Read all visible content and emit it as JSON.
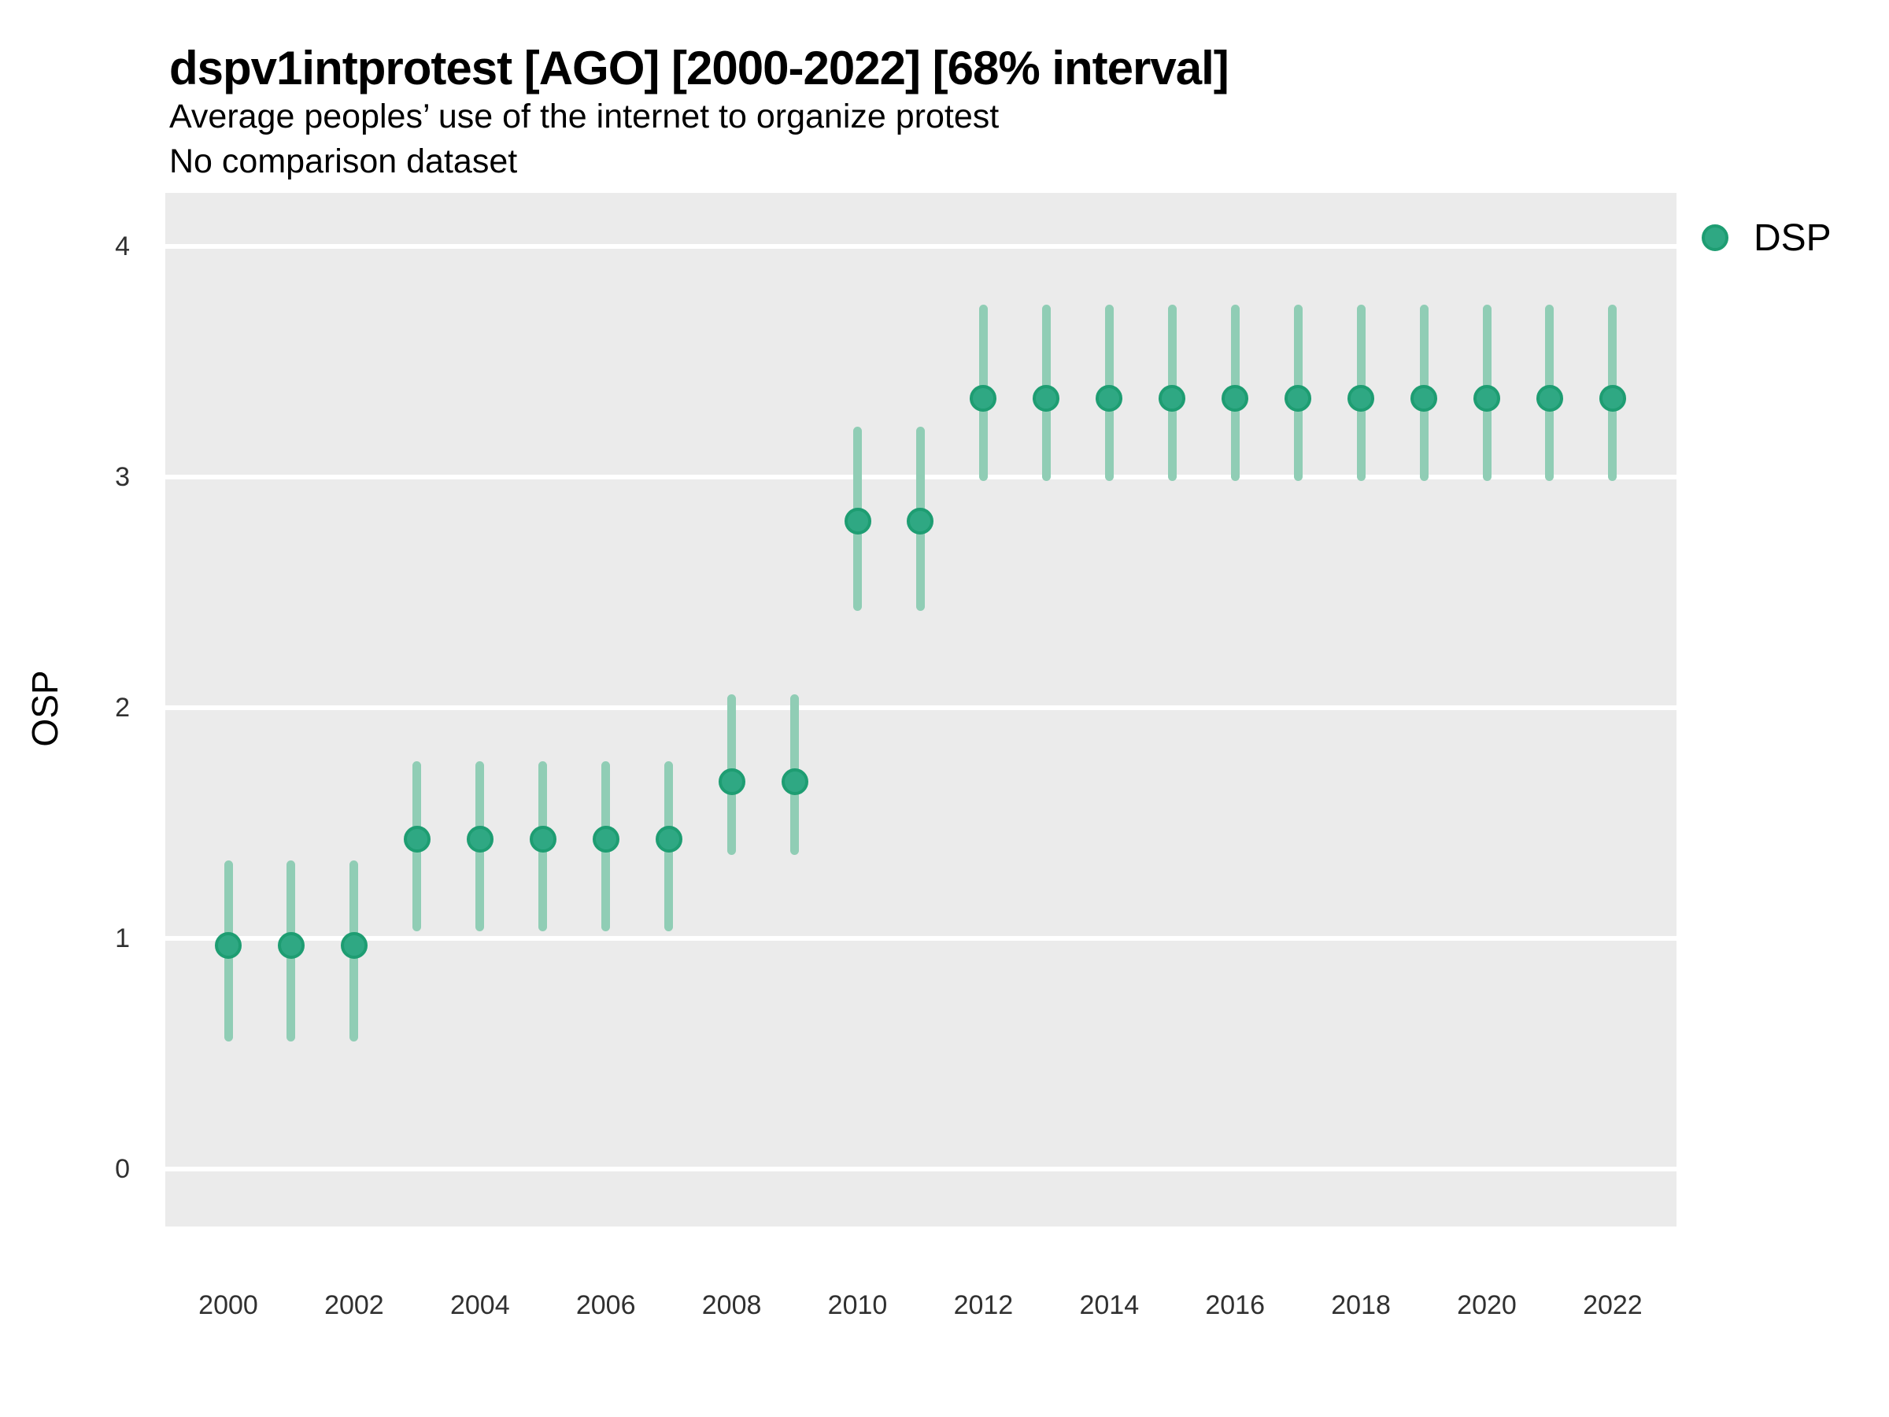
{
  "header": {
    "title": "dspv1intprotest [AGO] [2000-2022] [68% interval]",
    "subtitle": "Average peoples’ use of the internet to organize protest",
    "note": "No comparison dataset"
  },
  "legend": {
    "label": "DSP"
  },
  "axes": {
    "y_label": "OSP",
    "y_ticks": [
      "0",
      "1",
      "2",
      "3",
      "4"
    ],
    "x_ticks": [
      "2000",
      "2002",
      "2004",
      "2006",
      "2008",
      "2010",
      "2012",
      "2014",
      "2016",
      "2018",
      "2020",
      "2022"
    ]
  },
  "colors": {
    "point_fill": "#2FA883",
    "point_ring": "#1E9D72",
    "interval": "#90CDB5",
    "panel_bg": "#EBEBEB",
    "gridline": "#FFFFFF"
  },
  "chart_data": {
    "type": "pointrange",
    "title": "dspv1intprotest [AGO] [2000-2022] [68% interval]",
    "subtitle": "Average peoples’ use of the internet to organize protest",
    "note": "No comparison dataset",
    "ylabel": "OSP",
    "xlabel": "",
    "interval_level": "68%",
    "legend_entries": [
      {
        "name": "DSP",
        "color": "#2FA883"
      }
    ],
    "legend_position": "right-top",
    "grid": "major-horizontal-white-on-gray",
    "ylim": [
      -0.25,
      4.23
    ],
    "yticks": [
      0,
      1,
      2,
      3,
      4
    ],
    "xticks": [
      2000,
      2002,
      2004,
      2006,
      2008,
      2010,
      2012,
      2014,
      2016,
      2018,
      2020,
      2022
    ],
    "x": [
      2000,
      2001,
      2002,
      2003,
      2004,
      2005,
      2006,
      2007,
      2008,
      2009,
      2010,
      2011,
      2012,
      2013,
      2014,
      2015,
      2016,
      2017,
      2018,
      2019,
      2020,
      2021,
      2022
    ],
    "series": [
      {
        "name": "DSP",
        "est": [
          0.97,
          0.97,
          0.97,
          1.43,
          1.43,
          1.43,
          1.43,
          1.43,
          1.68,
          1.68,
          2.81,
          2.81,
          3.34,
          3.34,
          3.34,
          3.34,
          3.34,
          3.34,
          3.34,
          3.34,
          3.34,
          3.34,
          3.34
        ],
        "lo": [
          0.57,
          0.57,
          0.57,
          1.05,
          1.05,
          1.05,
          1.05,
          1.05,
          1.38,
          1.38,
          2.44,
          2.44,
          3.0,
          3.0,
          3.0,
          3.0,
          3.0,
          3.0,
          3.0,
          3.0,
          3.0,
          3.0,
          3.0
        ],
        "hi": [
          1.32,
          1.32,
          1.32,
          1.75,
          1.75,
          1.75,
          1.75,
          1.75,
          2.04,
          2.04,
          3.2,
          3.2,
          3.73,
          3.73,
          3.73,
          3.73,
          3.73,
          3.73,
          3.73,
          3.73,
          3.73,
          3.73,
          3.73
        ]
      }
    ]
  }
}
